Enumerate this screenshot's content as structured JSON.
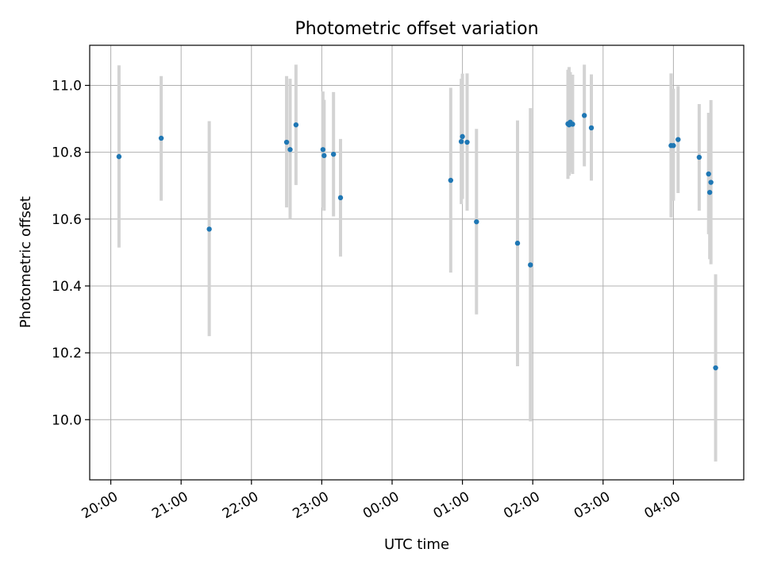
{
  "chart_data": {
    "type": "scatter",
    "title": "Photometric offset variation",
    "xlabel": "UTC time",
    "ylabel": "Photometric offset",
    "x_unit": "hours",
    "xlim": [
      -0.3,
      9.0
    ],
    "ylim": [
      9.82,
      11.12
    ],
    "grid": true,
    "x_ticks": [
      {
        "value": 0,
        "label": "20:00"
      },
      {
        "value": 1,
        "label": "21:00"
      },
      {
        "value": 2,
        "label": "22:00"
      },
      {
        "value": 3,
        "label": "23:00"
      },
      {
        "value": 4,
        "label": "00:00"
      },
      {
        "value": 5,
        "label": "01:00"
      },
      {
        "value": 6,
        "label": "02:00"
      },
      {
        "value": 7,
        "label": "03:00"
      },
      {
        "value": 8,
        "label": "04:00"
      }
    ],
    "y_ticks": [
      {
        "value": 10.0,
        "label": "10.0"
      },
      {
        "value": 10.2,
        "label": "10.2"
      },
      {
        "value": 10.4,
        "label": "10.4"
      },
      {
        "value": 10.6,
        "label": "10.6"
      },
      {
        "value": 10.8,
        "label": "10.8"
      },
      {
        "value": 11.0,
        "label": "11.0"
      }
    ],
    "marker_color": "#1f77b4",
    "errorbar_color": "#d3d3d3",
    "points": [
      {
        "t": "20:07",
        "y": 10.787,
        "ylow": 10.515,
        "yhigh": 11.06
      },
      {
        "t": "20:43",
        "y": 10.842,
        "ylow": 10.655,
        "yhigh": 11.028
      },
      {
        "t": "21:24",
        "y": 10.57,
        "ylow": 10.25,
        "yhigh": 10.893
      },
      {
        "t": "22:30",
        "y": 10.83,
        "ylow": 10.635,
        "yhigh": 11.028
      },
      {
        "t": "22:33",
        "y": 10.808,
        "ylow": 10.6,
        "yhigh": 11.02
      },
      {
        "t": "22:38",
        "y": 10.882,
        "ylow": 10.702,
        "yhigh": 11.062
      },
      {
        "t": "23:01",
        "y": 10.808,
        "ylow": 10.635,
        "yhigh": 10.982
      },
      {
        "t": "23:02",
        "y": 10.79,
        "ylow": 10.625,
        "yhigh": 10.957
      },
      {
        "t": "23:10",
        "y": 10.794,
        "ylow": 10.608,
        "yhigh": 10.98
      },
      {
        "t": "23:16",
        "y": 10.664,
        "ylow": 10.488,
        "yhigh": 10.84
      },
      {
        "t": "00:50",
        "y": 10.716,
        "ylow": 10.44,
        "yhigh": 10.993
      },
      {
        "t": "00:59",
        "y": 10.832,
        "ylow": 10.645,
        "yhigh": 11.02
      },
      {
        "t": "01:00",
        "y": 10.847,
        "ylow": 10.66,
        "yhigh": 11.035
      },
      {
        "t": "01:04",
        "y": 10.83,
        "ylow": 10.625,
        "yhigh": 11.036
      },
      {
        "t": "01:12",
        "y": 10.592,
        "ylow": 10.315,
        "yhigh": 10.87
      },
      {
        "t": "01:47",
        "y": 10.528,
        "ylow": 10.16,
        "yhigh": 10.895
      },
      {
        "t": "01:58",
        "y": 10.463,
        "ylow": 9.995,
        "yhigh": 10.932
      },
      {
        "t": "02:30",
        "y": 10.885,
        "ylow": 10.72,
        "yhigh": 11.047
      },
      {
        "t": "02:31",
        "y": 10.882,
        "ylow": 10.73,
        "yhigh": 11.055
      },
      {
        "t": "02:32",
        "y": 10.89,
        "ylow": 10.74,
        "yhigh": 11.04
      },
      {
        "t": "02:34",
        "y": 10.884,
        "ylow": 10.735,
        "yhigh": 11.032
      },
      {
        "t": "02:44",
        "y": 10.91,
        "ylow": 10.758,
        "yhigh": 11.062
      },
      {
        "t": "02:50",
        "y": 10.873,
        "ylow": 10.715,
        "yhigh": 11.033
      },
      {
        "t": "03:58",
        "y": 10.82,
        "ylow": 10.605,
        "yhigh": 11.036
      },
      {
        "t": "04:00",
        "y": 10.82,
        "ylow": 10.655,
        "yhigh": 10.99
      },
      {
        "t": "04:04",
        "y": 10.838,
        "ylow": 10.678,
        "yhigh": 10.998
      },
      {
        "t": "04:22",
        "y": 10.785,
        "ylow": 10.625,
        "yhigh": 10.944
      },
      {
        "t": "04:30",
        "y": 10.735,
        "ylow": 10.555,
        "yhigh": 10.918
      },
      {
        "t": "04:31",
        "y": 10.68,
        "ylow": 10.48,
        "yhigh": 10.88
      },
      {
        "t": "04:32",
        "y": 10.71,
        "ylow": 10.465,
        "yhigh": 10.956
      },
      {
        "t": "04:36",
        "y": 10.155,
        "ylow": 9.875,
        "yhigh": 10.435
      }
    ]
  }
}
